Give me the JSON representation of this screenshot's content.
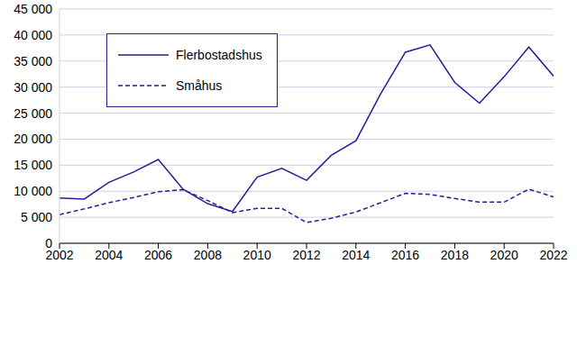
{
  "chart_data": {
    "type": "line",
    "x": [
      2002,
      2003,
      2004,
      2005,
      2006,
      2007,
      2008,
      2009,
      2010,
      2011,
      2012,
      2013,
      2014,
      2015,
      2016,
      2017,
      2018,
      2019,
      2020,
      2021,
      2022
    ],
    "series": [
      {
        "name": "Flerbostadshus",
        "color": "#2d1b96",
        "line_style": "solid",
        "values": [
          8700,
          8500,
          11700,
          13700,
          16100,
          10400,
          7600,
          6100,
          12700,
          14400,
          12100,
          16900,
          19700,
          28700,
          36700,
          38100,
          30900,
          26900,
          32000,
          37700,
          32100
        ]
      },
      {
        "name": "Småhus",
        "color": "#2d1b96",
        "line_style": "dashed",
        "values": [
          5500,
          6600,
          7800,
          8800,
          9900,
          10300,
          8200,
          5900,
          6700,
          6700,
          4000,
          4800,
          6000,
          7800,
          9600,
          9400,
          8600,
          7900,
          7900,
          10400,
          8900
        ]
      }
    ],
    "xlim": [
      2002,
      2022
    ],
    "xticks": [
      2002,
      2004,
      2006,
      2008,
      2010,
      2012,
      2014,
      2016,
      2018,
      2020,
      2022
    ],
    "ylim": [
      0,
      45000
    ],
    "yticks": [
      0,
      {
        "value": 5000,
        "label": "5 000"
      },
      {
        "value": 10000,
        "label": "10 000"
      },
      {
        "value": 15000,
        "label": "15 000"
      },
      {
        "value": 20000,
        "label": "20 000"
      },
      {
        "value": 25000,
        "label": "25 000"
      },
      {
        "value": 30000,
        "label": "30 000"
      },
      {
        "value": 35000,
        "label": "35 000"
      },
      {
        "value": 40000,
        "label": "40 000"
      },
      {
        "value": 45000,
        "label": "45 000"
      }
    ],
    "grid": true,
    "legend": "upper left"
  }
}
